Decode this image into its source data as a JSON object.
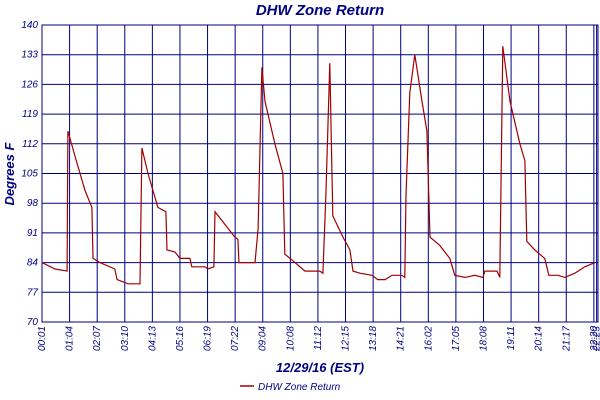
{
  "chart_data": {
    "type": "line",
    "title": "DHW Zone Return",
    "x_label": "12/29/16 (EST)",
    "y_label": "Degrees F",
    "xlim": [
      0,
      20.15
    ],
    "ylim": [
      70,
      140
    ],
    "yticks": [
      70,
      77,
      84,
      91,
      98,
      105,
      112,
      119,
      126,
      133,
      140
    ],
    "xticks": [
      {
        "value": 0,
        "label": "00:01"
      },
      {
        "value": 1,
        "label": "01:04"
      },
      {
        "value": 2,
        "label": "02:07"
      },
      {
        "value": 3,
        "label": "03:10"
      },
      {
        "value": 4,
        "label": "04:13"
      },
      {
        "value": 5,
        "label": "05:16"
      },
      {
        "value": 6,
        "label": "06:19"
      },
      {
        "value": 7,
        "label": "07:22"
      },
      {
        "value": 8,
        "label": "09:04"
      },
      {
        "value": 9,
        "label": "10:08"
      },
      {
        "value": 10,
        "label": "11:12"
      },
      {
        "value": 11,
        "label": "12:15"
      },
      {
        "value": 12,
        "label": "13:18"
      },
      {
        "value": 13,
        "label": "14:21"
      },
      {
        "value": 14,
        "label": "16:02"
      },
      {
        "value": 15,
        "label": "17:05"
      },
      {
        "value": 16,
        "label": "18:08"
      },
      {
        "value": 17,
        "label": "19:11"
      },
      {
        "value": 18,
        "label": "20:14"
      },
      {
        "value": 19,
        "label": "21:17"
      },
      {
        "value": 20,
        "label": "22:20"
      },
      {
        "value": 20.1,
        "label": "22:23"
      }
    ],
    "grid": true,
    "legend": "bottom",
    "x": [
      0,
      0.47,
      0.91,
      0.94,
      1.2,
      1.56,
      1.81,
      1.85,
      2.1,
      2.64,
      2.72,
      3.12,
      3.55,
      3.62,
      3.84,
      4.2,
      4.49,
      4.53,
      4.82,
      5.0,
      5.36,
      5.43,
      5.91,
      6.01,
      6.23,
      6.27,
      6.63,
      6.99,
      7.1,
      7.14,
      7.54,
      7.72,
      7.83,
      7.97,
      8.08,
      8.44,
      8.73,
      8.8,
      9.17,
      9.53,
      10.07,
      10.18,
      10.29,
      10.43,
      10.54,
      10.91,
      11.16,
      11.27,
      11.52,
      11.96,
      12.17,
      12.43,
      12.68,
      13.04,
      13.15,
      13.19,
      13.33,
      13.51,
      13.77,
      13.95,
      14.06,
      14.42,
      14.78,
      14.96,
      15.33,
      15.69,
      15.98,
      16.05,
      16.49,
      16.59,
      16.7,
      16.96,
      17.32,
      17.5,
      17.57,
      17.86,
      18.22,
      18.37,
      18.7,
      18.95,
      19.31,
      19.67,
      20.04
    ],
    "series": [
      {
        "name": "DHW Zone Return",
        "color": "#a00000",
        "values": [
          84,
          82.5,
          82,
          115,
          109,
          101,
          97,
          85,
          84,
          82.5,
          80,
          79,
          79,
          111,
          105,
          97,
          96,
          87,
          86.5,
          85,
          85,
          83,
          83,
          82.5,
          83,
          96,
          93,
          90,
          89.5,
          84,
          84,
          84,
          92,
          130,
          122,
          112,
          105,
          86,
          84,
          82,
          82,
          81.5,
          100,
          131,
          95,
          90,
          87,
          82,
          81.5,
          81,
          80,
          80,
          81,
          81,
          80.5,
          100,
          124,
          133,
          122,
          115,
          90,
          88,
          85,
          81,
          80.5,
          81,
          80.5,
          82,
          82,
          80.5,
          135,
          122,
          112,
          108,
          89,
          87,
          85,
          81,
          81,
          80.5,
          81.5,
          83,
          84
        ]
      }
    ]
  }
}
